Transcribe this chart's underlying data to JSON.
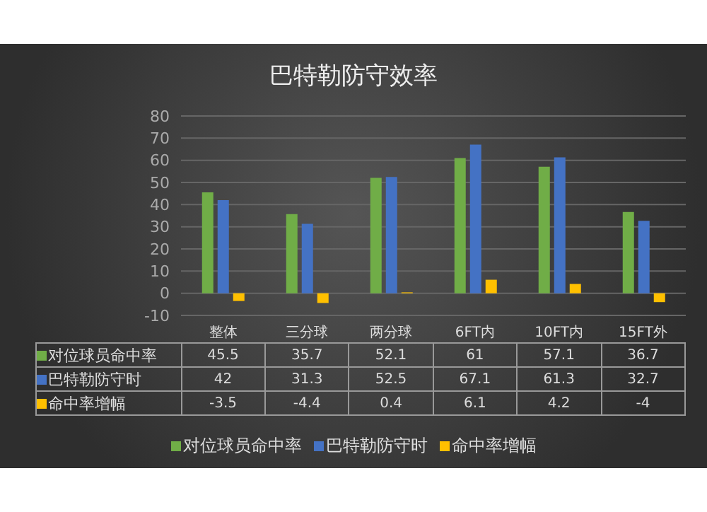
{
  "chart_data": {
    "type": "bar",
    "title": "巴特勒防守效率",
    "categories": [
      "整体",
      "三分球",
      "两分球",
      "6FT内",
      "10FT内",
      "15FT外"
    ],
    "series": [
      {
        "name": "对位球员命中率",
        "color": "#70ad47",
        "values": [
          45.5,
          35.7,
          52.1,
          61,
          57.1,
          36.7
        ]
      },
      {
        "name": "巴特勒防守时",
        "color": "#4472c4",
        "values": [
          42,
          31.3,
          52.5,
          67.1,
          61.3,
          32.7
        ]
      },
      {
        "name": "命中率增幅",
        "color": "#ffc000",
        "values": [
          -3.5,
          -4.4,
          0.4,
          6.1,
          4.2,
          -4
        ]
      }
    ],
    "ylim": [
      -10,
      80
    ],
    "yticks": [
      -10,
      0,
      10,
      20,
      30,
      40,
      50,
      60,
      70,
      80
    ],
    "grid": "y",
    "legend": "bottom",
    "data_labels": true
  }
}
